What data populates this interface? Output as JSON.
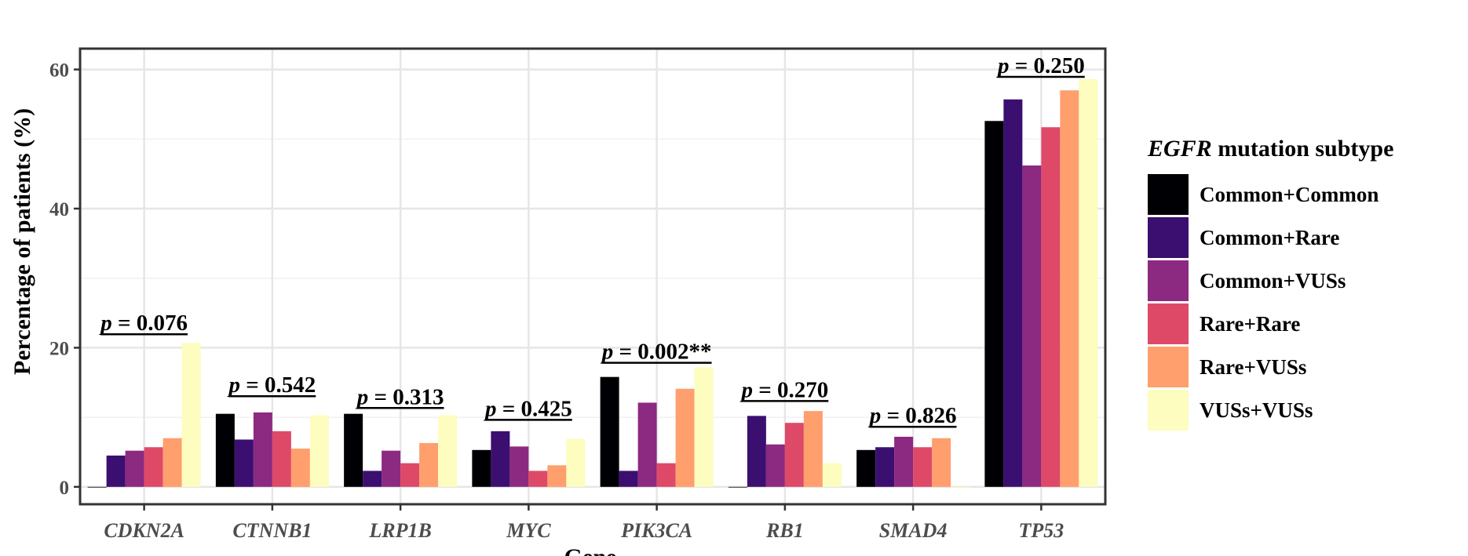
{
  "chart_data": {
    "type": "bar",
    "title": "",
    "xlabel": "Gene",
    "ylabel": "Percentage of patients (%)",
    "ylim": [
      -2.5,
      63
    ],
    "yticks": [
      0,
      20,
      40,
      60
    ],
    "grid": true,
    "legend_position": "right",
    "legend_title": {
      "gene": "EGFR",
      "rest": " mutation subtype"
    },
    "categories": [
      "CDKN2A",
      "CTNNB1",
      "LRP1B",
      "MYC",
      "PIK3CA",
      "RB1",
      "SMAD4",
      "TP53"
    ],
    "series": [
      {
        "name": "Common+Common",
        "color": "#000004",
        "values": [
          0,
          10.5,
          10.5,
          5.3,
          15.8,
          0,
          5.3,
          52.6
        ]
      },
      {
        "name": "Common+Rare",
        "color": "#3b0f70",
        "values": [
          4.5,
          6.8,
          2.3,
          8.0,
          2.3,
          10.2,
          5.7,
          55.7
        ]
      },
      {
        "name": "Common+VUSs",
        "color": "#8c2981",
        "values": [
          5.2,
          10.7,
          5.2,
          5.8,
          12.1,
          6.1,
          7.2,
          46.2
        ]
      },
      {
        "name": "Rare+Rare",
        "color": "#de4968",
        "values": [
          5.7,
          8.0,
          3.4,
          2.3,
          3.4,
          9.2,
          5.7,
          51.7
        ]
      },
      {
        "name": "Rare+VUSs",
        "color": "#fe9f6d",
        "values": [
          7.0,
          5.5,
          6.3,
          3.1,
          14.1,
          10.9,
          7.0,
          57.0
        ]
      },
      {
        "name": "VUSs+VUSs",
        "color": "#fcfdbf",
        "values": [
          20.7,
          10.3,
          10.3,
          6.9,
          17.2,
          3.4,
          0,
          58.6
        ]
      }
    ],
    "annotations": [
      {
        "category": "CDKN2A",
        "p": "p",
        "text": " = 0.076",
        "y": 22.5
      },
      {
        "category": "CTNNB1",
        "p": "p",
        "text": " = 0.542",
        "y": 13.6
      },
      {
        "category": "LRP1B",
        "p": "p",
        "text": " = 0.313",
        "y": 11.9
      },
      {
        "category": "MYC",
        "p": "p",
        "text": " = 0.425",
        "y": 10.2
      },
      {
        "category": "PIK3CA",
        "p": "p",
        "text": " = 0.002**",
        "y": 18.4
      },
      {
        "category": "RB1",
        "p": "p",
        "text": " = 0.270",
        "y": 12.9
      },
      {
        "category": "SMAD4",
        "p": "p",
        "text": " = 0.826",
        "y": 9.2
      },
      {
        "category": "TP53",
        "p": "p",
        "text": " = 0.250",
        "y": 59.5
      }
    ]
  }
}
